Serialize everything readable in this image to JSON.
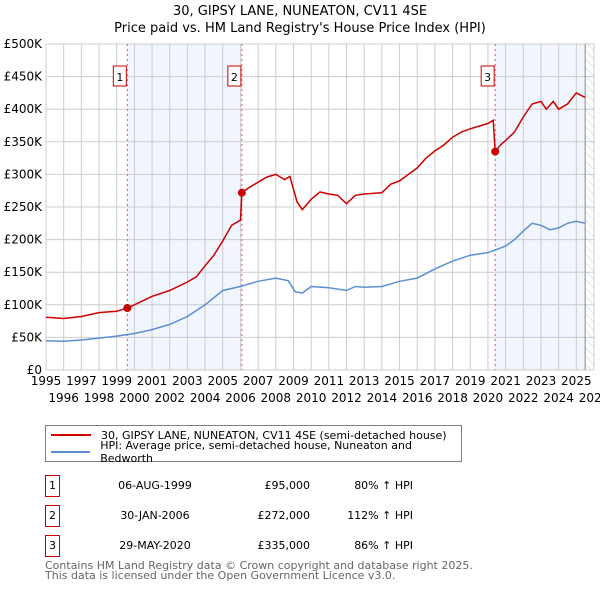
{
  "chart_data": {
    "type": "line",
    "title": "30, GIPSY LANE, NUNEATON, CV11 4SE",
    "subtitle": "Price paid vs. HM Land Registry's House Price Index (HPI)",
    "xlim": [
      1995,
      2026
    ],
    "ylim": [
      0,
      500000
    ],
    "y_ticks": [
      0,
      50000,
      100000,
      150000,
      200000,
      250000,
      300000,
      350000,
      400000,
      450000,
      500000
    ],
    "y_tick_labels": [
      "£0",
      "£50K",
      "£100K",
      "£150K",
      "£200K",
      "£250K",
      "£300K",
      "£350K",
      "£400K",
      "£450K",
      "£500K"
    ],
    "x_ticks": [
      1995,
      1996,
      1997,
      1998,
      1999,
      2000,
      2001,
      2002,
      2003,
      2004,
      2005,
      2006,
      2007,
      2008,
      2009,
      2010,
      2011,
      2012,
      2013,
      2014,
      2015,
      2016,
      2017,
      2018,
      2019,
      2020,
      2021,
      2022,
      2023,
      2024,
      2025,
      2026
    ],
    "grid": true,
    "shaded_ranges": [
      [
        1999.6,
        2006.08
      ],
      [
        2020.41,
        2025.5
      ]
    ],
    "forecast_hatch_from": 2025.5,
    "series": [
      {
        "name": "30, GIPSY LANE, NUNEATON, CV11 4SE (semi-detached house)",
        "color": "#cc0000",
        "x": [
          1995,
          1996,
          1997,
          1998,
          1999,
          1999.6,
          2000,
          2001,
          2002,
          2003,
          2003.5,
          2004,
          2004.5,
          2005,
          2005.5,
          2006.0,
          2006.08,
          2006.5,
          2007,
          2007.5,
          2008,
          2008.5,
          2008.8,
          2009.2,
          2009.5,
          2010,
          2010.5,
          2011,
          2011.5,
          2012,
          2012.5,
          2013,
          2014,
          2014.5,
          2015,
          2015.5,
          2016,
          2016.5,
          2017,
          2017.5,
          2018,
          2018.5,
          2019,
          2020,
          2020.3,
          2020.41,
          2020.7,
          2021,
          2021.5,
          2022,
          2022.5,
          2023,
          2023.3,
          2023.7,
          2024,
          2024.5,
          2025,
          2025.5
        ],
        "y": [
          81000,
          79000,
          82000,
          88000,
          90000,
          95000,
          100000,
          113000,
          122000,
          135000,
          143000,
          160000,
          176000,
          198000,
          222000,
          230000,
          272000,
          280000,
          288000,
          296000,
          300000,
          292000,
          297000,
          258000,
          246000,
          262000,
          273000,
          270000,
          268000,
          255000,
          268000,
          270000,
          272000,
          285000,
          290000,
          300000,
          310000,
          325000,
          336000,
          345000,
          357000,
          365000,
          370000,
          378000,
          383000,
          335000,
          345000,
          352000,
          365000,
          388000,
          408000,
          412000,
          400000,
          412000,
          400000,
          408000,
          425000,
          418000
        ]
      },
      {
        "name": "HPI: Average price, semi-detached house, Nuneaton and Bedworth",
        "color": "#5b8fd4",
        "x": [
          1995,
          1996,
          1997,
          1998,
          1999,
          2000,
          2001,
          2002,
          2003,
          2004,
          2005,
          2006,
          2007,
          2008,
          2008.7,
          2009.1,
          2009.5,
          2010,
          2011,
          2012,
          2012.5,
          2013,
          2014,
          2015,
          2016,
          2017,
          2018,
          2019,
          2020,
          2020.5,
          2021,
          2021.5,
          2022,
          2022.5,
          2023,
          2023.5,
          2024,
          2024.5,
          2025,
          2025.5
        ],
        "y": [
          45000,
          44000,
          46000,
          49000,
          52000,
          56000,
          62000,
          70000,
          82000,
          100000,
          122000,
          128000,
          136000,
          141000,
          137000,
          120000,
          118000,
          128000,
          126000,
          122000,
          128000,
          127000,
          128000,
          136000,
          141000,
          155000,
          167000,
          176000,
          180000,
          185000,
          190000,
          200000,
          213000,
          225000,
          222000,
          215000,
          218000,
          225000,
          228000,
          225000
        ]
      }
    ],
    "sales": [
      {
        "label": "1",
        "x": 1999.6,
        "y": 95000
      },
      {
        "label": "2",
        "x": 2006.08,
        "y": 272000
      },
      {
        "label": "3",
        "x": 2020.41,
        "y": 335000
      }
    ]
  },
  "legend": {
    "property": "30, GIPSY LANE, NUNEATON, CV11 4SE (semi-detached house)",
    "hpi": "HPI: Average price, semi-detached house, Nuneaton and Bedworth"
  },
  "table": [
    {
      "num": "1",
      "date": "06-AUG-1999",
      "price": "£95,000",
      "hpi": "80% ↑ HPI"
    },
    {
      "num": "2",
      "date": "30-JAN-2006",
      "price": "£272,000",
      "hpi": "112% ↑ HPI"
    },
    {
      "num": "3",
      "date": "29-MAY-2020",
      "price": "£335,000",
      "hpi": "86% ↑ HPI"
    }
  ],
  "footer": {
    "line1": "Contains HM Land Registry data © Crown copyright and database right 2025.",
    "line2": "This data is licensed under the Open Government Licence v3.0."
  }
}
